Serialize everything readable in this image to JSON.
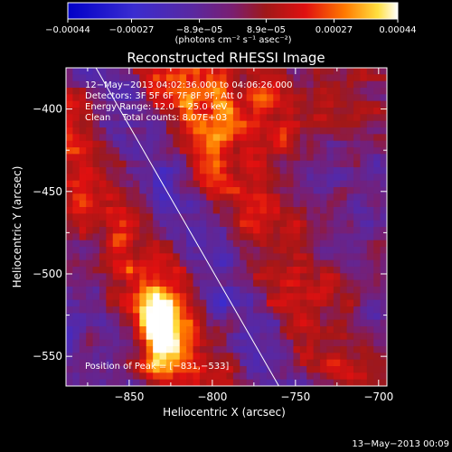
{
  "chart_data": {
    "type": "heatmap",
    "title": "Reconstructed RHESSI Image",
    "xlabel": "Heliocentric X (arcsec)",
    "ylabel": "Heliocentric Y (arcsec)",
    "xlim": [
      -888,
      -695
    ],
    "ylim": [
      -568,
      -375
    ],
    "x_ticks": [
      -850,
      -800,
      -750,
      -700
    ],
    "x_tick_labels": [
      "−850",
      "−800",
      "−750",
      "−700"
    ],
    "y_ticks": [
      -550,
      -500,
      -450,
      -400
    ],
    "y_tick_labels": [
      "−550",
      "−500",
      "−450",
      "−400"
    ],
    "colorbar": {
      "min": -0.00044,
      "max": 0.00044,
      "ticks": [
        -0.00044,
        -0.00027,
        -8.9e-05,
        8.9e-05,
        0.00027,
        0.00044
      ],
      "tick_labels": [
        "−0.00044",
        "−0.00027",
        "−8.9e−05",
        "8.9e−05",
        "0.00027",
        "0.00044"
      ],
      "unit_label": "(photons cm⁻² s⁻¹ asec⁻²)"
    },
    "annotations": [
      "12−May−2013 04:02:36.000 to 04:06:26.000",
      "Detectors: 3F 5F 6F 7F 8F 9F, Att 0",
      "Energy Range: 12.0 − 25.0 keV",
      "Clean    Total counts: 8.07E+03"
    ],
    "peak_label": "Position of Peak = [−831,−533]",
    "peak_position": [
      -831,
      -533
    ],
    "limb_line": [
      [
        -870,
        -375
      ],
      [
        -760,
        -568
      ]
    ],
    "colormap": "rhessi-blue-purple-red-yellow-white"
  },
  "footer": {
    "timestamp": "13−May−2013 00:09"
  }
}
